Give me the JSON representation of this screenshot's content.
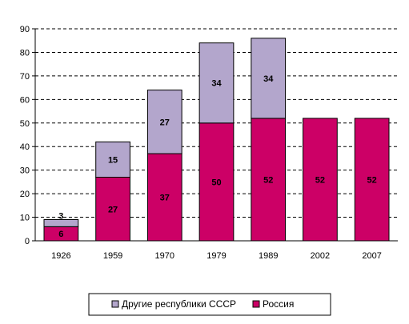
{
  "chart_data": {
    "type": "bar",
    "stacked": true,
    "categories": [
      "1926",
      "1959",
      "1970",
      "1979",
      "1989",
      "2002",
      "2007"
    ],
    "series": [
      {
        "name": "Россия",
        "values": [
          6,
          27,
          37,
          50,
          52,
          52,
          52
        ],
        "color": "#cc0066"
      },
      {
        "name": "Другие республики  СССР",
        "values": [
          3,
          15,
          27,
          34,
          34,
          null,
          null
        ],
        "color": "#b3a6cc"
      }
    ],
    "title": "",
    "xlabel": "",
    "ylabel": "",
    "ylim": [
      0,
      90
    ],
    "ytick_step": 10,
    "grid": true,
    "grid_style": "dashed",
    "legend_placement": "bottom",
    "legend_order": [
      "Другие республики  СССР",
      "Россия"
    ]
  }
}
